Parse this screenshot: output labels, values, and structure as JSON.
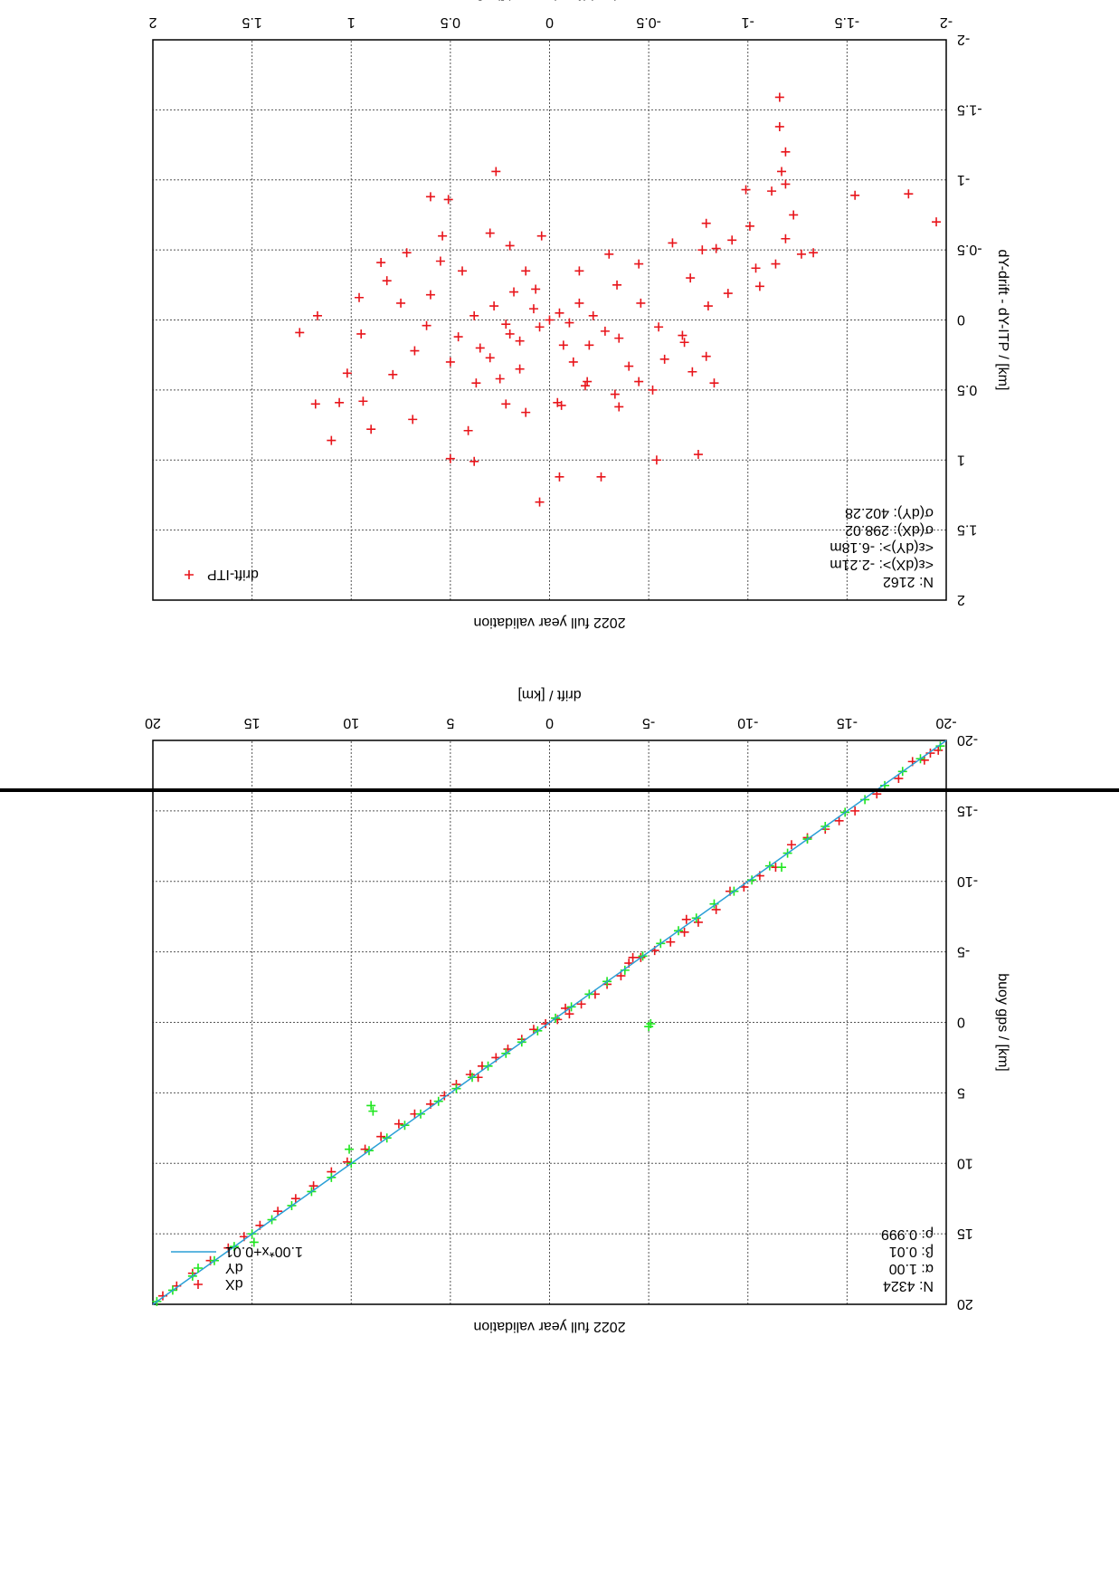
{
  "orientation": "rotated-180",
  "charts": [
    {
      "title": "2022 full year validation",
      "xlabel": "drift / [km]",
      "ylabel": "buoy gps / [km]",
      "xticks": [
        "-20",
        "-15",
        "-10",
        "-5",
        "0",
        "5",
        "10",
        "15",
        "20"
      ],
      "yticks": [
        "-20",
        "-15",
        "-10",
        "-5",
        "0",
        "5",
        "10",
        "15",
        "20"
      ],
      "legend": [
        "dX",
        "dY",
        "1.00*x+0.01"
      ],
      "stats": [
        "N: 4324",
        "α: 1.00",
        "β: 0.01",
        "ρ: 0.999"
      ]
    },
    {
      "title": "2022 full year validation",
      "xlabel": "dX-drift - dX-ITP / [km]",
      "ylabel": "dY-drift - dY-ITP / [km]",
      "xticks": [
        "-2",
        "-1.5",
        "-1",
        "-0.5",
        "0",
        "0.5",
        "1",
        "1.5",
        "2"
      ],
      "yticks": [
        "-2",
        "-1.5",
        "-1",
        "-0.5",
        "0",
        "0.5",
        "1",
        "1.5",
        "2"
      ],
      "legend": [
        "drift-ITP"
      ],
      "stats": [
        "N: 2162",
        "<ε(dX)>: -2.21m",
        "<ε(dY)>: -6.18m",
        "σ(dX): 298.02",
        "σ(dY): 402.28"
      ]
    }
  ],
  "colors": {
    "dX": "#e8151b",
    "dY": "#1ee61e",
    "fit": "#2a9fd6",
    "grid": "#555555"
  },
  "chart_data": [
    {
      "type": "scatter",
      "title": "2022 full year validation",
      "xlabel": "drift / [km]",
      "ylabel": "buoy gps / [km]",
      "xlim": [
        -20,
        20
      ],
      "ylim": [
        -20,
        20
      ],
      "grid": true,
      "legend_position": "top-left",
      "series": [
        {
          "name": "dX",
          "marker": "+",
          "color": "#e8151b",
          "points": [
            [
              -19.6,
              -19.3
            ],
            [
              -19.2,
              -19.1
            ],
            [
              -18.9,
              -18.6
            ],
            [
              -18.3,
              -18.5
            ],
            [
              -17.6,
              -17.3
            ],
            [
              -16.5,
              -16.2
            ],
            [
              -15.4,
              -15.0
            ],
            [
              -14.6,
              -14.3
            ],
            [
              -13.9,
              -13.7
            ],
            [
              -13.0,
              -13.1
            ],
            [
              -12.2,
              -12.6
            ],
            [
              -11.4,
              -11.0
            ],
            [
              -10.6,
              -10.4
            ],
            [
              -9.8,
              -9.6
            ],
            [
              -9.1,
              -9.3
            ],
            [
              -8.4,
              -8.0
            ],
            [
              -7.5,
              -7.1
            ],
            [
              -6.8,
              -6.4
            ],
            [
              -6.1,
              -5.7
            ],
            [
              -5.3,
              -5.1
            ],
            [
              -4.6,
              -4.6
            ],
            [
              -4.2,
              -4.6
            ],
            [
              -3.6,
              -3.3
            ],
            [
              -2.9,
              -2.7
            ],
            [
              -2.3,
              -2.0
            ],
            [
              -1.6,
              -1.3
            ],
            [
              -1.0,
              -0.6
            ],
            [
              -0.4,
              -0.2
            ],
            [
              0.2,
              0.1
            ],
            [
              0.8,
              0.5
            ],
            [
              1.4,
              1.2
            ],
            [
              2.1,
              1.9
            ],
            [
              2.7,
              2.5
            ],
            [
              3.4,
              3.1
            ],
            [
              4.0,
              3.7
            ],
            [
              4.7,
              4.4
            ],
            [
              5.3,
              5.2
            ],
            [
              6.0,
              5.8
            ],
            [
              6.8,
              6.5
            ],
            [
              7.6,
              7.2
            ],
            [
              8.5,
              8.1
            ],
            [
              9.3,
              9.0
            ],
            [
              10.2,
              9.9
            ],
            [
              11.0,
              10.6
            ],
            [
              11.9,
              11.6
            ],
            [
              12.8,
              12.5
            ],
            [
              13.7,
              13.4
            ],
            [
              14.6,
              14.4
            ],
            [
              15.4,
              15.2
            ],
            [
              16.2,
              16.0
            ],
            [
              17.1,
              16.9
            ],
            [
              18.0,
              17.8
            ],
            [
              18.8,
              18.7
            ],
            [
              19.5,
              19.4
            ],
            [
              -4.0,
              -4.2
            ],
            [
              3.6,
              3.9
            ],
            [
              -6.9,
              -7.3
            ],
            [
              -0.8,
              -1.0
            ]
          ]
        },
        {
          "name": "dY",
          "marker": "+",
          "color": "#1ee61e",
          "points": [
            [
              -19.7,
              -19.6
            ],
            [
              -18.7,
              -18.7
            ],
            [
              -17.8,
              -17.8
            ],
            [
              -16.9,
              -16.8
            ],
            [
              -15.9,
              -15.8
            ],
            [
              -14.9,
              -14.9
            ],
            [
              -13.9,
              -13.9
            ],
            [
              -13.0,
              -13.0
            ],
            [
              -12.0,
              -12.0
            ],
            [
              -11.1,
              -11.1
            ],
            [
              -10.2,
              -10.1
            ],
            [
              -9.3,
              -9.3
            ],
            [
              -8.3,
              -8.4
            ],
            [
              -7.4,
              -7.4
            ],
            [
              -6.5,
              -6.5
            ],
            [
              -5.6,
              -5.6
            ],
            [
              -4.7,
              -4.7
            ],
            [
              -3.8,
              -3.7
            ],
            [
              -2.9,
              -2.9
            ],
            [
              -2.0,
              -2.0
            ],
            [
              -1.1,
              -1.1
            ],
            [
              -0.3,
              -0.3
            ],
            [
              0.6,
              0.6
            ],
            [
              1.4,
              1.4
            ],
            [
              2.2,
              2.2
            ],
            [
              3.1,
              3.1
            ],
            [
              3.9,
              3.9
            ],
            [
              4.7,
              4.7
            ],
            [
              5.6,
              5.6
            ],
            [
              6.5,
              6.5
            ],
            [
              7.3,
              7.3
            ],
            [
              8.2,
              8.2
            ],
            [
              9.1,
              9.1
            ],
            [
              10.0,
              10.0
            ],
            [
              11.0,
              11.0
            ],
            [
              12.0,
              12.0
            ],
            [
              13.0,
              13.0
            ],
            [
              14.0,
              14.0
            ],
            [
              15.0,
              15.0
            ],
            [
              15.9,
              15.9
            ],
            [
              16.9,
              16.9
            ],
            [
              18.0,
              18.0
            ],
            [
              19.0,
              19.0
            ],
            [
              19.8,
              19.8
            ],
            [
              -5.0,
              0.3
            ],
            [
              -5.1,
              0.1
            ],
            [
              8.9,
              6.3
            ],
            [
              9.0,
              5.9
            ],
            [
              10.1,
              9.0
            ],
            [
              14.9,
              15.6
            ],
            [
              -11.7,
              -11.0
            ]
          ]
        },
        {
          "name": "1.00*x+0.01",
          "type": "line",
          "color": "#2a9fd6",
          "points": [
            [
              -20,
              -19.99
            ],
            [
              20,
              20.01
            ]
          ]
        }
      ]
    },
    {
      "type": "scatter",
      "title": "2022 full year validation",
      "xlabel": "dX-drift - dX-ITP / [km]",
      "ylabel": "dY-drift - dY-ITP / [km]",
      "xlim": [
        -2,
        2
      ],
      "ylim": [
        -2,
        2
      ],
      "grid": true,
      "legend_position": "top-right",
      "series": [
        {
          "name": "drift-ITP",
          "marker": "+",
          "color": "#e8151b",
          "points": [
            [
              -1.16,
              -1.59
            ],
            [
              -1.16,
              -1.38
            ],
            [
              -1.19,
              -1.2
            ],
            [
              -1.17,
              -1.06
            ],
            [
              -1.19,
              -0.97
            ],
            [
              -0.99,
              -0.93
            ],
            [
              -1.12,
              -0.92
            ],
            [
              -1.54,
              -0.89
            ],
            [
              -1.23,
              -0.75
            ],
            [
              -1.95,
              -0.7
            ],
            [
              -1.81,
              -0.9
            ],
            [
              -1.01,
              -0.67
            ],
            [
              -1.19,
              -0.58
            ],
            [
              -0.92,
              -0.57
            ],
            [
              -0.84,
              -0.51
            ],
            [
              -0.77,
              -0.5
            ],
            [
              -1.14,
              -0.4
            ],
            [
              -1.33,
              -0.48
            ],
            [
              -0.79,
              -0.69
            ],
            [
              -1.06,
              -0.24
            ],
            [
              -0.9,
              -0.19
            ],
            [
              -0.71,
              -0.3
            ],
            [
              -0.8,
              -0.1
            ],
            [
              -1.27,
              -0.47
            ],
            [
              -1.04,
              -0.37
            ],
            [
              0.27,
              -1.06
            ],
            [
              0.51,
              -0.86
            ],
            [
              0.6,
              -0.88
            ],
            [
              0.54,
              -0.6
            ],
            [
              0.85,
              -0.41
            ],
            [
              1.26,
              0.09
            ],
            [
              1.17,
              -0.03
            ],
            [
              1.02,
              0.38
            ],
            [
              1.1,
              0.86
            ],
            [
              0.94,
              0.58
            ],
            [
              0.79,
              0.39
            ],
            [
              0.69,
              0.71
            ],
            [
              0.41,
              0.79
            ],
            [
              0.38,
              1.01
            ],
            [
              0.5,
              0.99
            ],
            [
              0.05,
              1.3
            ],
            [
              -0.05,
              1.12
            ],
            [
              -0.26,
              1.12
            ],
            [
              -0.54,
              1.0
            ],
            [
              -0.75,
              0.96
            ],
            [
              -0.83,
              0.45
            ],
            [
              -0.79,
              0.26
            ],
            [
              -0.67,
              0.11
            ],
            [
              -0.58,
              0.28
            ],
            [
              -0.45,
              0.44
            ],
            [
              -0.33,
              0.53
            ],
            [
              -0.19,
              0.44
            ],
            [
              -0.06,
              0.61
            ],
            [
              0.12,
              0.66
            ],
            [
              0.22,
              0.6
            ],
            [
              0.37,
              0.45
            ],
            [
              0.3,
              0.27
            ],
            [
              0.15,
              0.15
            ],
            [
              0.05,
              0.05
            ],
            [
              0.0,
              0.0
            ],
            [
              -0.05,
              -0.05
            ],
            [
              -0.1,
              0.02
            ],
            [
              0.08,
              -0.08
            ],
            [
              -0.15,
              -0.12
            ],
            [
              0.2,
              0.1
            ],
            [
              -0.2,
              0.18
            ],
            [
              0.18,
              -0.2
            ],
            [
              -0.28,
              0.08
            ],
            [
              0.28,
              -0.1
            ],
            [
              -0.34,
              -0.25
            ],
            [
              0.35,
              0.2
            ],
            [
              -0.4,
              0.33
            ],
            [
              0.44,
              -0.35
            ],
            [
              -0.45,
              -0.4
            ],
            [
              0.5,
              0.3
            ],
            [
              0.55,
              -0.42
            ],
            [
              -0.52,
              0.5
            ],
            [
              0.6,
              -0.18
            ],
            [
              -0.62,
              -0.55
            ],
            [
              0.68,
              0.22
            ],
            [
              -0.12,
              0.3
            ],
            [
              0.12,
              -0.35
            ],
            [
              -0.3,
              -0.47
            ],
            [
              0.25,
              0.42
            ],
            [
              -0.07,
              0.18
            ],
            [
              0.07,
              -0.22
            ],
            [
              -0.22,
              -0.03
            ],
            [
              0.22,
              0.03
            ],
            [
              -0.35,
              0.13
            ],
            [
              0.38,
              -0.03
            ],
            [
              -0.46,
              -0.12
            ],
            [
              0.46,
              0.12
            ],
            [
              -0.55,
              0.05
            ],
            [
              0.62,
              0.04
            ],
            [
              -0.68,
              0.16
            ],
            [
              0.75,
              -0.12
            ],
            [
              0.82,
              -0.28
            ],
            [
              0.95,
              0.1
            ],
            [
              0.72,
              -0.48
            ],
            [
              -0.72,
              0.37
            ],
            [
              0.2,
              -0.53
            ],
            [
              -0.18,
              0.47
            ],
            [
              0.04,
              -0.6
            ],
            [
              -0.04,
              0.59
            ],
            [
              0.3,
              -0.62
            ],
            [
              -0.35,
              0.62
            ],
            [
              0.15,
              0.35
            ],
            [
              -0.15,
              -0.35
            ],
            [
              0.9,
              0.78
            ],
            [
              1.06,
              0.59
            ],
            [
              1.18,
              0.6
            ],
            [
              0.96,
              -0.16
            ]
          ]
        }
      ]
    }
  ]
}
